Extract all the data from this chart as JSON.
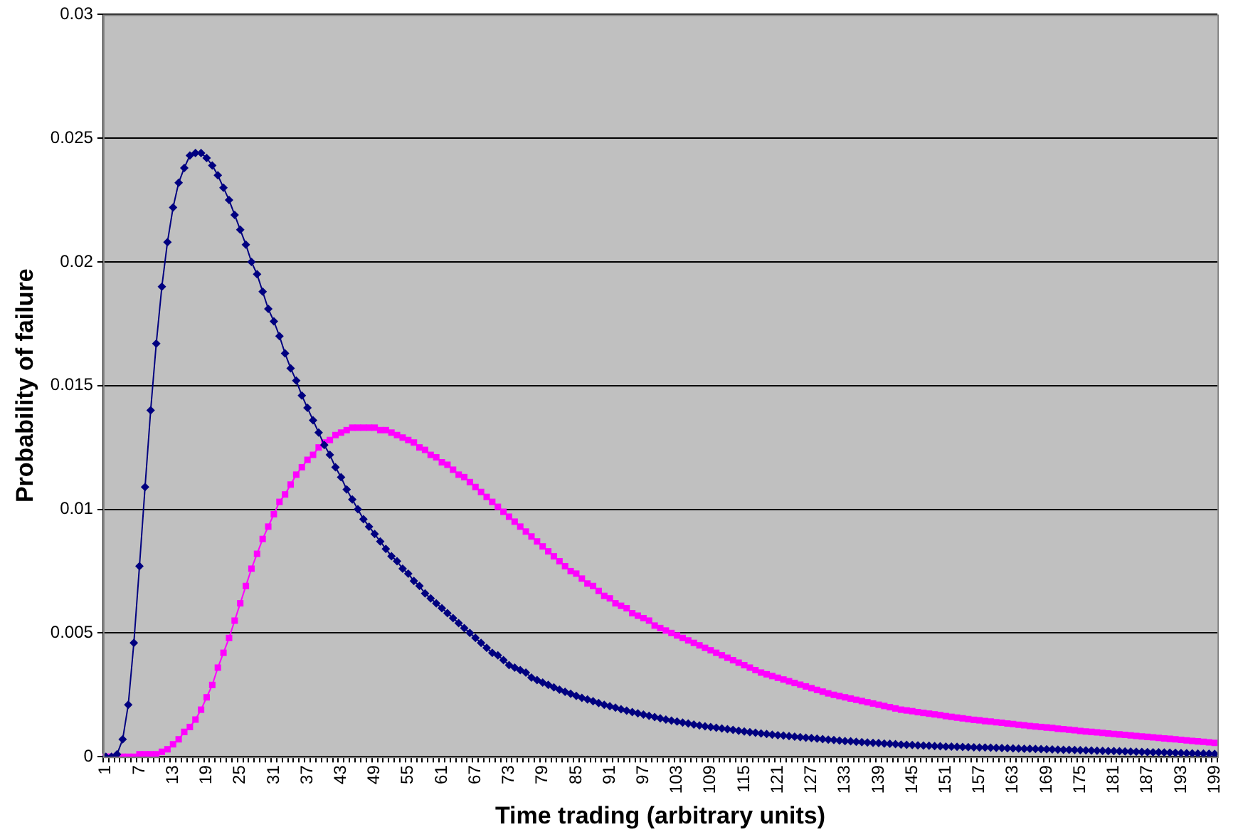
{
  "chart_data": {
    "type": "line",
    "xlabel": "Time trading (arbitrary units)",
    "ylabel": "Probability of failure",
    "categories": [
      "1",
      null,
      null,
      null,
      null,
      null,
      "7",
      null,
      null,
      null,
      null,
      null,
      "13",
      null,
      null,
      null,
      null,
      null,
      "19",
      null,
      null,
      null,
      null,
      null,
      "25",
      null,
      null,
      null,
      null,
      null,
      "31",
      null,
      null,
      null,
      null,
      null,
      "37",
      null,
      null,
      null,
      null,
      null,
      "43",
      null,
      null,
      null,
      null,
      null,
      "49",
      null,
      null,
      null,
      null,
      null,
      "55",
      null,
      null,
      null,
      null,
      null,
      "61",
      null,
      null,
      null,
      null,
      null,
      "67",
      null,
      null,
      null,
      null,
      null,
      "73",
      null,
      null,
      null,
      null,
      null,
      "79",
      null,
      null,
      null,
      null,
      null,
      "85",
      null,
      null,
      null,
      null,
      null,
      "91",
      null,
      null,
      null,
      null,
      null,
      "97",
      null,
      null,
      null,
      null,
      null,
      "103",
      null,
      null,
      null,
      null,
      null,
      "109",
      null,
      null,
      null,
      null,
      null,
      "115",
      null,
      null,
      null,
      null,
      null,
      "121",
      null,
      null,
      null,
      null,
      null,
      "127",
      null,
      null,
      null,
      null,
      null,
      "133",
      null,
      null,
      null,
      null,
      null,
      "139",
      null,
      null,
      null,
      null,
      null,
      "145",
      null,
      null,
      null,
      null,
      null,
      "151",
      null,
      null,
      null,
      null,
      null,
      "157",
      null,
      null,
      null,
      null,
      null,
      "163",
      null,
      null,
      null,
      null,
      null,
      "169",
      null,
      null,
      null,
      null,
      null,
      "175",
      null,
      null,
      null,
      null,
      null,
      "181",
      null,
      null,
      null,
      null,
      null,
      "187",
      null,
      null,
      null,
      null,
      null,
      "193",
      null,
      null,
      null,
      null,
      null,
      "199"
    ],
    "series": [
      {
        "color": "#000080",
        "marker": "diamond",
        "values": [
          0,
          0,
          0.0001,
          0.0007,
          0.0021,
          0.0046,
          0.0077,
          0.0109,
          0.014,
          0.0167,
          0.019,
          0.0208,
          0.0222,
          0.0232,
          0.0238,
          0.0243,
          0.0244,
          0.0244,
          0.0242,
          0.0239,
          0.0235,
          0.023,
          0.0225,
          0.0219,
          0.0213,
          0.0207,
          0.02,
          0.0195,
          0.0188,
          0.0181,
          0.0176,
          0.017,
          0.0163,
          0.0157,
          0.0152,
          0.0146,
          0.0141,
          0.0136,
          0.0131,
          0.0126,
          0.0122,
          0.0117,
          0.0113,
          0.0108,
          0.0104,
          0.01,
          0.0096,
          0.0093,
          0.009,
          0.0087,
          0.0084,
          0.0081,
          0.0079,
          0.0076,
          0.0074,
          0.0071,
          0.0069,
          0.0066,
          0.0064,
          0.0062,
          0.006,
          0.0058,
          0.0056,
          0.0054,
          0.0052,
          0.005,
          0.0048,
          0.0046,
          0.0044,
          0.0042,
          0.0041,
          0.0039,
          0.0037,
          0.0036,
          0.0035,
          0.0034,
          0.0032,
          0.0031,
          0.003,
          0.0029,
          0.0028,
          0.00271,
          0.00262,
          0.00254,
          0.00246,
          0.00238,
          0.00231,
          0.00224,
          0.00217,
          0.0021,
          0.00204,
          0.00198,
          0.00192,
          0.00186,
          0.0018,
          0.00175,
          0.0017,
          0.00165,
          0.0016,
          0.00155,
          0.0015,
          0.00146,
          0.00142,
          0.00138,
          0.00134,
          0.0013,
          0.00126,
          0.00123,
          0.0012,
          0.00117,
          0.00114,
          0.00111,
          0.00108,
          0.00105,
          0.00102,
          0.00099,
          0.00097,
          0.00094,
          0.00092,
          0.00089,
          0.00087,
          0.00085,
          0.00083,
          0.00081,
          0.00079,
          0.00077,
          0.00075,
          0.00073,
          0.00071,
          0.00069,
          0.00067,
          0.00065,
          0.00063,
          0.00062,
          0.0006,
          0.00059,
          0.00057,
          0.00056,
          0.00055,
          0.00053,
          0.00052,
          0.00051,
          0.00049,
          0.00048,
          0.00047,
          0.00046,
          0.00045,
          0.00044,
          0.00043,
          0.00042,
          0.00041,
          0.000404,
          0.000398,
          0.000392,
          0.000386,
          0.00038,
          0.000374,
          0.000368,
          0.000362,
          0.000356,
          0.00035,
          0.000343,
          0.000337,
          0.00033,
          0.000324,
          0.000318,
          0.000312,
          0.000306,
          0.0003,
          0.000294,
          0.000288,
          0.000281,
          0.000275,
          0.000268,
          0.000262,
          0.000256,
          0.00025,
          0.000243,
          0.000237,
          0.00023,
          0.000224,
          0.000218,
          0.000212,
          0.000206,
          0.0002,
          0.000193,
          0.000187,
          0.00018,
          0.000174,
          0.000168,
          0.000162,
          0.000156,
          0.00015,
          0.000143,
          0.000137,
          0.00013,
          0.000124,
          0.000117,
          0.00011
        ]
      },
      {
        "color": "#ff00ff",
        "marker": "square",
        "values": [
          0,
          0,
          0,
          0,
          0,
          0,
          0.0001,
          0.0001,
          0.0001,
          0.0001,
          0.0002,
          0.0003,
          0.0005,
          0.0007,
          0.001,
          0.0012,
          0.0015,
          0.0019,
          0.0024,
          0.0029,
          0.0036,
          0.0042,
          0.0048,
          0.0055,
          0.0062,
          0.0069,
          0.0076,
          0.0082,
          0.0088,
          0.0093,
          0.0098,
          0.0103,
          0.0106,
          0.011,
          0.0114,
          0.0117,
          0.012,
          0.0122,
          0.0125,
          0.0127,
          0.0128,
          0.013,
          0.0131,
          0.0132,
          0.0133,
          0.0133,
          0.0133,
          0.0133,
          0.0133,
          0.0132,
          0.0132,
          0.0131,
          0.013,
          0.0129,
          0.0128,
          0.0127,
          0.0125,
          0.0124,
          0.0122,
          0.0121,
          0.0119,
          0.0118,
          0.0116,
          0.0114,
          0.0113,
          0.0111,
          0.0109,
          0.0107,
          0.0105,
          0.0103,
          0.0101,
          0.0099,
          0.0097,
          0.0095,
          0.0093,
          0.0091,
          0.0089,
          0.0087,
          0.0085,
          0.0083,
          0.0081,
          0.0079,
          0.0077,
          0.0075,
          0.0074,
          0.0072,
          0.007,
          0.0069,
          0.0067,
          0.0065,
          0.0064,
          0.0062,
          0.0061,
          0.006,
          0.0058,
          0.0057,
          0.0056,
          0.0055,
          0.0053,
          0.0052,
          0.0051,
          0.005,
          0.0049,
          0.0048,
          0.0047,
          0.0046,
          0.0045,
          0.0044,
          0.0043,
          0.0042,
          0.0041,
          0.004,
          0.0039,
          0.0038,
          0.0037,
          0.0036,
          0.0035,
          0.0034,
          0.00333,
          0.00326,
          0.00319,
          0.00312,
          0.00305,
          0.00298,
          0.00291,
          0.00284,
          0.00277,
          0.0027,
          0.00263,
          0.00256,
          0.0025,
          0.00245,
          0.0024,
          0.00235,
          0.0023,
          0.00225,
          0.0022,
          0.00215,
          0.0021,
          0.00205,
          0.002,
          0.00195,
          0.0019,
          0.00187,
          0.00184,
          0.0018,
          0.00177,
          0.00174,
          0.00171,
          0.00168,
          0.00164,
          0.00161,
          0.00158,
          0.00155,
          0.00152,
          0.00149,
          0.00147,
          0.00144,
          0.00142,
          0.00139,
          0.00137,
          0.00134,
          0.00132,
          0.00129,
          0.00127,
          0.00124,
          0.00122,
          0.0012,
          0.00118,
          0.00116,
          0.00113,
          0.00111,
          0.00109,
          0.00107,
          0.00104,
          0.00102,
          0.001,
          0.00098,
          0.00096,
          0.00094,
          0.00092,
          0.0009,
          0.00088,
          0.00086,
          0.00084,
          0.00082,
          0.0008,
          0.00078,
          0.00076,
          0.00074,
          0.00072,
          0.0007,
          0.00068,
          0.00066,
          0.00064,
          0.00062,
          0.0006,
          0.00058,
          0.00056
        ]
      }
    ],
    "ylim": [
      0,
      0.03
    ],
    "yticks": [
      0,
      0.005,
      0.01,
      0.015,
      0.02,
      0.025,
      0.03
    ],
    "grid": "y",
    "legend": false
  }
}
